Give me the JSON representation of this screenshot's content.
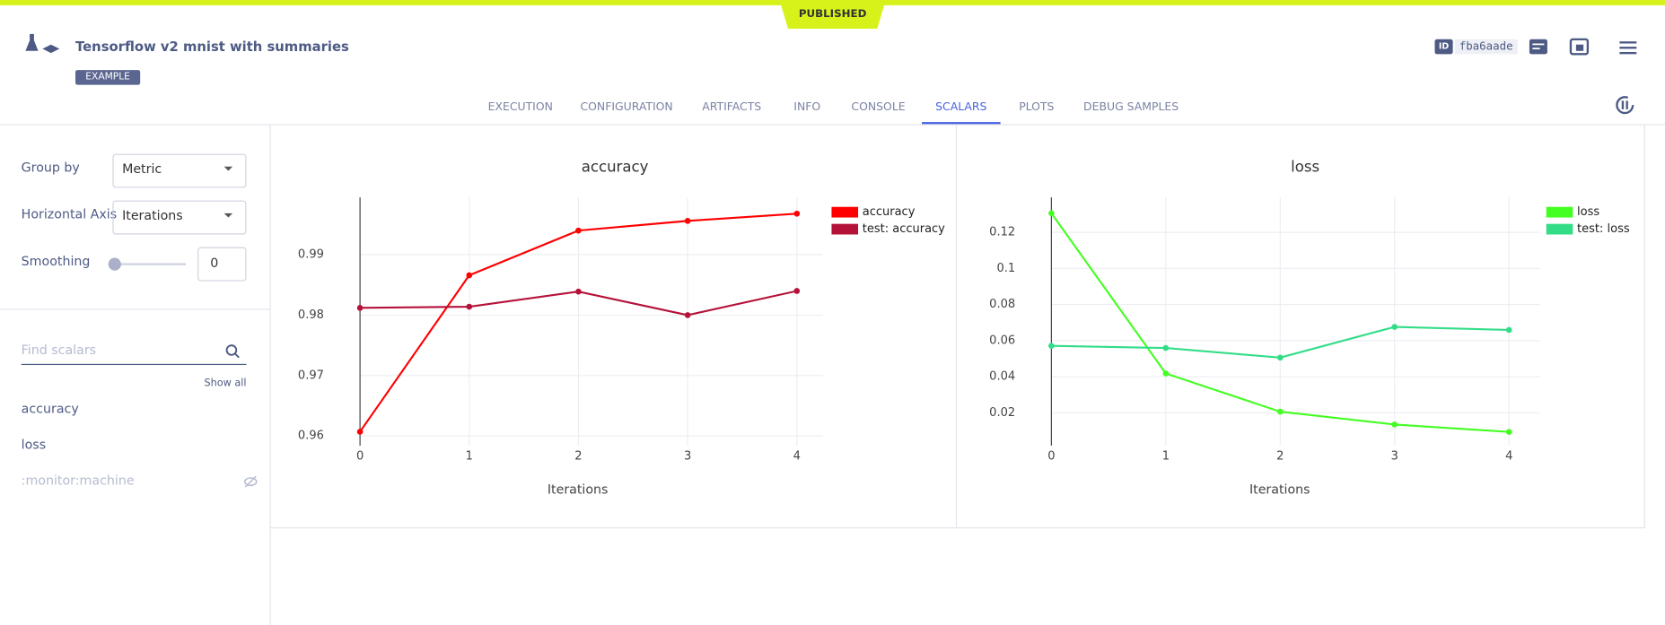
{
  "header": {
    "status": "PUBLISHED",
    "title": "Tensorflow v2 mnist with summaries",
    "tag": "EXAMPLE",
    "id_label": "ID",
    "id": "fba6aade"
  },
  "tabs": [
    "EXECUTION",
    "CONFIGURATION",
    "ARTIFACTS",
    "INFO",
    "CONSOLE",
    "SCALARS",
    "PLOTS",
    "DEBUG SAMPLES"
  ],
  "sidebar": {
    "group_by_label": "Group by",
    "group_by": "Metric",
    "axis_label": "Horizontal Axis",
    "axis": "Iterations",
    "smoothing_label": "Smoothing",
    "smoothing": "0",
    "search_placeholder": "Find scalars",
    "show_all": "Show all",
    "metrics": [
      "accuracy",
      "loss",
      ":monitor:machine"
    ]
  },
  "chart_data": [
    {
      "type": "line",
      "title": "accuracy",
      "x_label": "Iterations",
      "x": [
        0,
        1,
        2,
        3,
        4
      ],
      "series": [
        {
          "name": "accuracy",
          "color": "#ff0000",
          "values": [
            0.9607,
            0.9866,
            0.994,
            0.9956,
            0.9968
          ]
        },
        {
          "name": "test: accuracy",
          "color": "#b5123a",
          "values": [
            0.9812,
            0.9814,
            0.9839,
            0.98,
            0.984
          ]
        }
      ],
      "xlim": [
        0,
        4.24
      ],
      "xticks": [
        0,
        1,
        2,
        3,
        4
      ],
      "ylim": [
        0.9584,
        0.9995
      ],
      "yticks": [
        0.96,
        0.97,
        0.98,
        0.99
      ],
      "grid": true,
      "legend": "right"
    },
    {
      "type": "line",
      "title": "loss",
      "x_label": "Iterations",
      "x": [
        0,
        1,
        2,
        3,
        4
      ],
      "series": [
        {
          "name": "loss",
          "color": "#44ff22",
          "values": [
            0.1306,
            0.0418,
            0.0206,
            0.0135,
            0.0094
          ]
        },
        {
          "name": "test: loss",
          "color": "#33dd88",
          "values": [
            0.0571,
            0.0559,
            0.0506,
            0.0676,
            0.0659
          ]
        }
      ],
      "xlim": [
        0,
        4.27
      ],
      "xticks": [
        0,
        1,
        2,
        3,
        4
      ],
      "ylim": [
        0.0018,
        0.1394
      ],
      "yticks": [
        0.02,
        0.04,
        0.06,
        0.08,
        0.1,
        0.12
      ],
      "grid": true,
      "legend": "right"
    }
  ]
}
